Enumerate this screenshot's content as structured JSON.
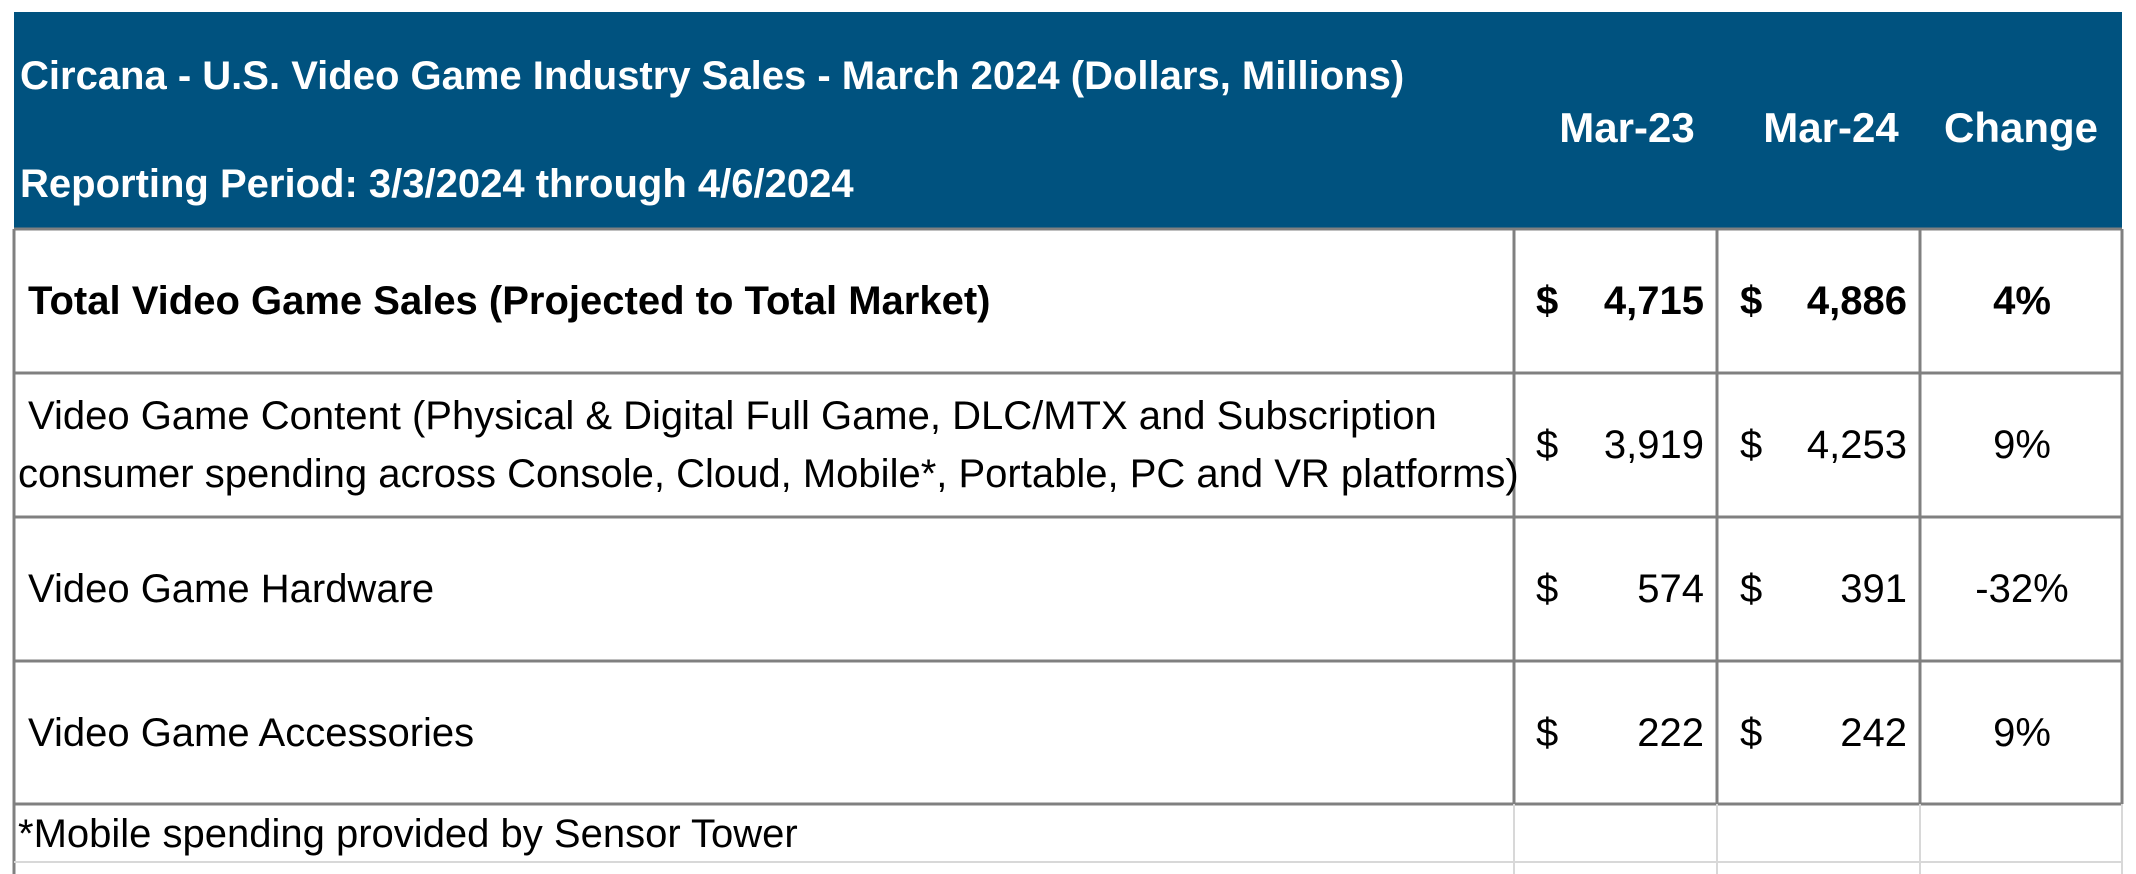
{
  "chart_data": {
    "type": "table",
    "title": "Circana - U.S. Video Game Industry Sales - March 2024 (Dollars, Millions)",
    "subtitle": "Reporting Period: 3/3/2024 through 4/6/2024",
    "columns": [
      "Mar-23",
      "Mar-24",
      "Change"
    ],
    "currency_symbol": "$",
    "rows": [
      {
        "label_lines": [
          "Total Video Game Sales (Projected to Total Market)"
        ],
        "mar23": "4,715",
        "mar24": "4,886",
        "change": "4%",
        "bold": true
      },
      {
        "label_lines": [
          "Video Game Content (Physical & Digital Full Game, DLC/MTX and Subscription",
          "consumer spending across Console, Cloud, Mobile*, Portable, PC and VR platforms)"
        ],
        "mar23": "3,919",
        "mar24": "4,253",
        "change": "9%",
        "bold": false
      },
      {
        "label_lines": [
          "Video Game Hardware"
        ],
        "mar23": "574",
        "mar24": "391",
        "change": "-32%",
        "bold": false
      },
      {
        "label_lines": [
          "Video Game Accessories"
        ],
        "mar23": "222",
        "mar24": "242",
        "change": "9%",
        "bold": false
      }
    ],
    "footnote": "*Mobile spending provided by Sensor Tower"
  }
}
